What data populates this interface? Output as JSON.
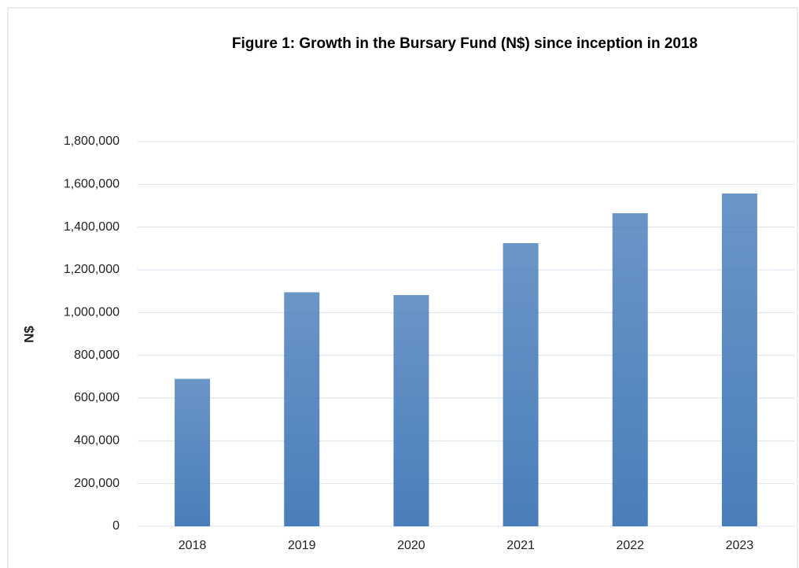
{
  "chart_data": {
    "type": "bar",
    "title": "Figure 1: Growth in the Bursary Fund (N$) since inception in 2018",
    "y_label": "N$",
    "categories": [
      "2018",
      "2019",
      "2020",
      "2021",
      "2022",
      "2023"
    ],
    "values": [
      690000,
      1095000,
      1082000,
      1325000,
      1465000,
      1557000
    ],
    "color": "#4a7ebb",
    "ylim": [
      0,
      1800000
    ],
    "yticks": [
      0,
      {
        "value": 200000,
        "label": "200,000"
      },
      {
        "value": 400000,
        "label": "400,000"
      },
      {
        "value": 600000,
        "label": "600,000"
      },
      {
        "value": 800000,
        "label": "800,000"
      },
      {
        "value": 1000000,
        "label": "1,000,000"
      },
      {
        "value": 1200000,
        "label": "1,200,000"
      },
      {
        "value": 1400000,
        "label": "1,400,000"
      },
      {
        "value": 1600000,
        "label": "1,600,000"
      },
      {
        "value": 1800000,
        "label": "1,800,000"
      }
    ],
    "grid": true
  }
}
